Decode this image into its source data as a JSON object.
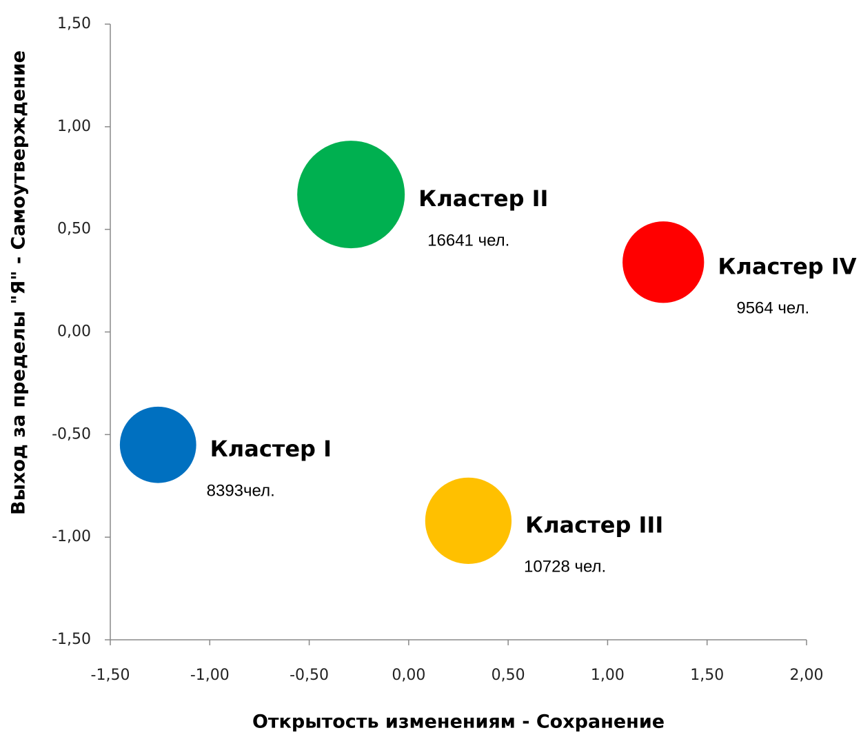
{
  "chart_data": {
    "type": "bubble",
    "x_label": "Открытость изменениям - Сохранение",
    "y_label": "Выход за пределы \"Я\" - Самоутверждение",
    "xlim": [
      -1.5,
      2.0
    ],
    "xticks": [
      {
        "value": -1.5,
        "label": "-1,50"
      },
      {
        "value": -1.0,
        "label": "-1,00"
      },
      {
        "value": -0.5,
        "label": "-0,50"
      },
      {
        "value": 0,
        "label": "0,00"
      },
      {
        "value": 0.5,
        "label": "0,50"
      },
      {
        "value": 1.0,
        "label": "1,00"
      },
      {
        "value": 1.5,
        "label": "1,50"
      },
      {
        "value": 2.0,
        "label": "2,00"
      }
    ],
    "ylim": [
      -1.5,
      1.5
    ],
    "yticks": [
      {
        "value": -1.5,
        "label": "-1,50"
      },
      {
        "value": -1.0,
        "label": "-1,00"
      },
      {
        "value": -0.5,
        "label": "-0,50"
      },
      {
        "value": 0,
        "label": "0,00"
      },
      {
        "value": 0.5,
        "label": "0,50"
      },
      {
        "value": 1.0,
        "label": "1,00"
      },
      {
        "value": 1.5,
        "label": "1,50"
      }
    ],
    "series": [
      {
        "name": "Кластер I",
        "color": "#0070c0",
        "x": [
          -1.26
        ],
        "y": [
          -0.55
        ],
        "size": [
          8393
        ],
        "value_labels": [
          "8393чел."
        ]
      },
      {
        "name": "Кластер II",
        "color": "#00b050",
        "x": [
          -0.29
        ],
        "y": [
          0.67
        ],
        "size": [
          16641
        ],
        "value_labels": [
          "16641 чел."
        ]
      },
      {
        "name": "Кластер III",
        "color": "#ffc000",
        "x": [
          0.3
        ],
        "y": [
          -0.92
        ],
        "size": [
          10728
        ],
        "value_labels": [
          "10728 чел."
        ]
      },
      {
        "name": "Кластер IV",
        "color": "#ff0000",
        "x": [
          1.28
        ],
        "y": [
          0.34
        ],
        "size": [
          9564
        ],
        "value_labels": [
          "9564 чел."
        ]
      }
    ]
  }
}
